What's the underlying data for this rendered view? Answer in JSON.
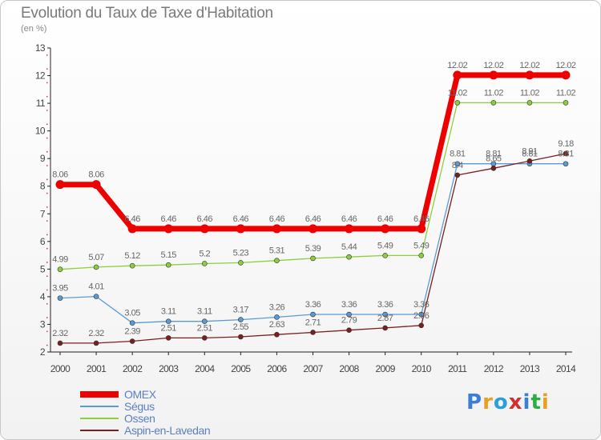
{
  "title": "Evolution du Taux de Taxe d'Habitation",
  "unit_label": "(en %)",
  "brand": "Proxiti",
  "chart_data": {
    "type": "line",
    "title": "Evolution du Taux de Taxe d'Habitation",
    "ylabel": "(en %)",
    "xlabel": "",
    "ylim": [
      2,
      13
    ],
    "yticks": [
      "2",
      "3",
      "4",
      "5",
      "6",
      "7",
      "8",
      "9",
      "10",
      "11",
      "12",
      "13"
    ],
    "grid": false,
    "legend_position": "bottom-left",
    "x": [
      "2000",
      "2001",
      "2002",
      "2003",
      "2004",
      "2005",
      "2006",
      "2007",
      "2008",
      "2009",
      "2010",
      "2011",
      "2012",
      "2013",
      "2014"
    ],
    "series": [
      {
        "name": "OMEX",
        "color": "#ee0000",
        "values": [
          8.06,
          8.06,
          6.46,
          6.46,
          6.46,
          6.46,
          6.46,
          6.46,
          6.46,
          6.46,
          6.46,
          12.02,
          12.02,
          12.02,
          12.02
        ],
        "labels": [
          "8.06",
          "8.06",
          "6.46",
          "6.46",
          "6.46",
          "6.46",
          "6.46",
          "6.46",
          "6.46",
          "6.46",
          "6.46",
          "12.02",
          "12.02",
          "12.02",
          "12.02"
        ]
      },
      {
        "name": "Ségus",
        "color": "#5a9bd5",
        "values": [
          3.95,
          4.01,
          3.05,
          3.11,
          3.11,
          3.17,
          3.26,
          3.36,
          3.36,
          3.36,
          3.36,
          8.81,
          8.81,
          8.81,
          8.81
        ],
        "labels": [
          "3.95",
          "4.01",
          "3.05",
          "3.11",
          "3.11",
          "3.17",
          "3.26",
          "3.36",
          "3.36",
          "3.36",
          "3.36",
          "8.81",
          "8.81",
          "8.81",
          "8.81"
        ]
      },
      {
        "name": "Ossen",
        "color": "#8ccf3c",
        "values": [
          4.99,
          5.07,
          5.12,
          5.15,
          5.2,
          5.23,
          5.31,
          5.39,
          5.44,
          5.49,
          5.49,
          11.02,
          11.02,
          11.02,
          11.02
        ],
        "labels": [
          "4.99",
          "5.07",
          "5.12",
          "5.15",
          "5.2",
          "5.23",
          "5.31",
          "5.39",
          "5.44",
          "5.49",
          "5.49",
          "11.02",
          "11.02",
          "11.02",
          "11.02"
        ]
      },
      {
        "name": "Aspin-en-Lavedan",
        "color": "#7a1e1e",
        "values": [
          2.32,
          2.32,
          2.39,
          2.51,
          2.51,
          2.55,
          2.63,
          2.71,
          2.79,
          2.87,
          2.96,
          8.4,
          8.65,
          8.91,
          9.18
        ],
        "labels": [
          "2.32",
          "2.32",
          "2.39",
          "2.51",
          "2.51",
          "2.55",
          "2.63",
          "2.71",
          "2.79",
          "2.87",
          "2.96",
          "8.4",
          "8.65",
          "8.91",
          "9.18"
        ]
      }
    ]
  }
}
